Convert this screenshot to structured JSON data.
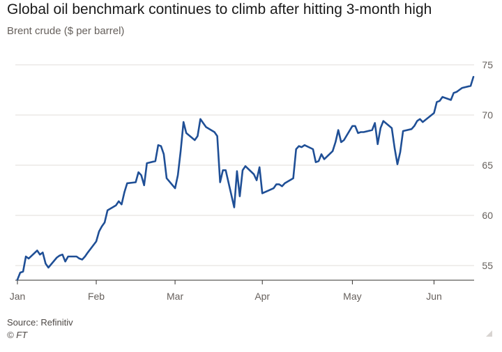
{
  "title": "Global oil benchmark continues to climb after hitting 3-month high",
  "subtitle": "Brent crude ($ per barrel)",
  "source": "Source: Refinitiv",
  "credit": "© FT",
  "colors": {
    "line": "#1f4f96",
    "grid": "#e0dcd9",
    "axis": "#33302e"
  },
  "chart_data": {
    "type": "line",
    "title": "Global oil benchmark continues to climb after hitting 3-month high",
    "ylabel": "Brent crude ($ per barrel)",
    "ylim": [
      53,
      76
    ],
    "yticks": [
      55,
      60,
      65,
      70,
      75
    ],
    "xticks": [
      "Jan",
      "Feb",
      "Mar",
      "Apr",
      "May",
      "Jun"
    ],
    "x_tick_positions": [
      "2021-01-04",
      "2021-02-01",
      "2021-03-01",
      "2021-04-01",
      "2021-05-03",
      "2021-06-01"
    ],
    "grid": true,
    "series": [
      {
        "x": [
          "2021-01-04",
          "2021-01-05",
          "2021-01-06",
          "2021-01-07",
          "2021-01-08",
          "2021-01-11",
          "2021-01-12",
          "2021-01-13",
          "2021-01-14",
          "2021-01-15",
          "2021-01-18",
          "2021-01-19",
          "2021-01-20",
          "2021-01-21",
          "2021-01-22",
          "2021-01-25",
          "2021-01-26",
          "2021-01-27",
          "2021-01-28",
          "2021-01-29",
          "2021-02-01",
          "2021-02-02",
          "2021-02-03",
          "2021-02-04",
          "2021-02-05",
          "2021-02-08",
          "2021-02-09",
          "2021-02-10",
          "2021-02-11",
          "2021-02-12",
          "2021-02-15",
          "2021-02-16",
          "2021-02-17",
          "2021-02-18",
          "2021-02-19",
          "2021-02-22",
          "2021-02-23",
          "2021-02-24",
          "2021-02-25",
          "2021-02-26",
          "2021-03-01",
          "2021-03-02",
          "2021-03-03",
          "2021-03-04",
          "2021-03-05",
          "2021-03-08",
          "2021-03-09",
          "2021-03-10",
          "2021-03-11",
          "2021-03-12",
          "2021-03-15",
          "2021-03-16",
          "2021-03-17",
          "2021-03-18",
          "2021-03-19",
          "2021-03-22",
          "2021-03-23",
          "2021-03-24",
          "2021-03-25",
          "2021-03-26",
          "2021-03-29",
          "2021-03-30",
          "2021-03-31",
          "2021-04-01",
          "2021-04-05",
          "2021-04-06",
          "2021-04-07",
          "2021-04-08",
          "2021-04-09",
          "2021-04-12",
          "2021-04-13",
          "2021-04-14",
          "2021-04-15",
          "2021-04-16",
          "2021-04-19",
          "2021-04-20",
          "2021-04-21",
          "2021-04-22",
          "2021-04-23",
          "2021-04-26",
          "2021-04-27",
          "2021-04-28",
          "2021-04-29",
          "2021-04-30",
          "2021-05-03",
          "2021-05-04",
          "2021-05-05",
          "2021-05-06",
          "2021-05-07",
          "2021-05-10",
          "2021-05-11",
          "2021-05-12",
          "2021-05-13",
          "2021-05-14",
          "2021-05-17",
          "2021-05-18",
          "2021-05-19",
          "2021-05-20",
          "2021-05-21",
          "2021-05-24",
          "2021-05-25",
          "2021-05-26",
          "2021-05-27",
          "2021-05-28",
          "2021-06-01",
          "2021-06-02",
          "2021-06-03",
          "2021-06-04",
          "2021-06-07",
          "2021-06-08",
          "2021-06-09",
          "2021-06-10",
          "2021-06-11",
          "2021-06-14",
          "2021-06-15"
        ],
        "values": [
          53.6,
          54.3,
          54.4,
          55.9,
          55.7,
          56.5,
          56.1,
          56.3,
          55.2,
          54.8,
          55.8,
          56.0,
          56.1,
          55.4,
          55.9,
          55.9,
          55.7,
          55.6,
          55.9,
          56.3,
          57.4,
          58.4,
          58.9,
          59.3,
          60.5,
          61.0,
          61.4,
          61.1,
          62.3,
          63.2,
          63.3,
          64.3,
          64.0,
          63.0,
          65.2,
          65.4,
          67.0,
          66.9,
          66.1,
          63.7,
          62.7,
          64.0,
          66.4,
          69.3,
          68.2,
          67.5,
          67.9,
          69.6,
          69.2,
          68.8,
          68.3,
          67.9,
          63.3,
          64.5,
          64.5,
          60.8,
          64.4,
          61.9,
          64.5,
          64.9,
          64.1,
          63.5,
          64.8,
          62.2,
          62.7,
          63.1,
          63.1,
          62.9,
          63.2,
          63.7,
          66.6,
          66.9,
          66.8,
          67.0,
          66.6,
          65.3,
          65.4,
          66.1,
          65.6,
          66.4,
          67.3,
          68.5,
          67.3,
          67.5,
          68.9,
          68.9,
          68.2,
          68.3,
          68.3,
          68.5,
          69.2,
          67.1,
          68.7,
          69.4,
          68.7,
          66.7,
          65.1,
          66.3,
          68.4,
          68.6,
          68.9,
          69.4,
          69.6,
          69.3,
          70.2,
          71.3,
          71.4,
          71.8,
          71.5,
          72.2,
          72.3,
          72.5,
          72.7,
          72.9,
          73.8
        ]
      }
    ]
  }
}
